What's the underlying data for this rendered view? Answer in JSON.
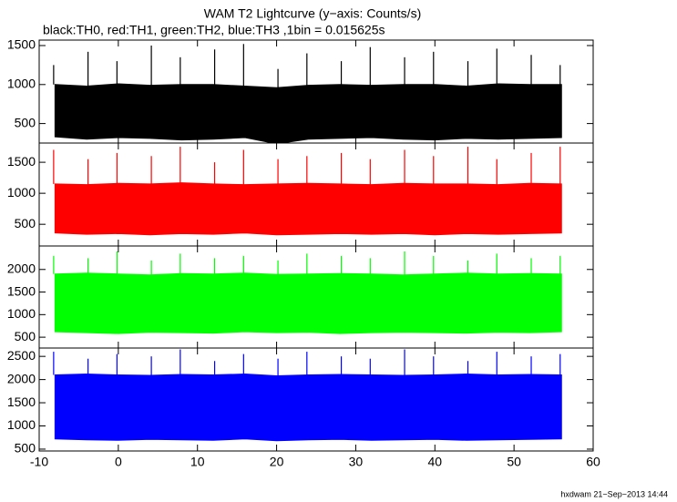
{
  "title": "WAM T2 Lightcurve (y−axis: Counts/s)",
  "subtitle": "black:TH0, red:TH1, green:TH2, blue:TH3 ,1bin = 0.015625s",
  "footer": "hxdwam 21−Sep−2013 14:44",
  "chart_data": [
    {
      "type": "band",
      "color": "#000000",
      "xlim": [
        -10,
        60
      ],
      "ylim": [
        250,
        1570
      ],
      "yticks": [
        500,
        1000,
        1500
      ],
      "x": [
        -8,
        -4,
        0,
        4,
        8,
        12,
        16,
        20,
        24,
        28,
        32,
        36,
        40,
        44,
        48,
        52,
        56
      ],
      "lower": [
        330,
        300,
        320,
        310,
        290,
        300,
        320,
        240,
        300,
        310,
        320,
        300,
        290,
        310,
        300,
        310,
        320
      ],
      "upper": [
        1000,
        980,
        1010,
        990,
        1000,
        1000,
        980,
        960,
        990,
        1000,
        990,
        1000,
        1000,
        980,
        1010,
        1000,
        1000
      ],
      "peaks": [
        1250,
        1420,
        1300,
        1500,
        1350,
        1450,
        1520,
        1200,
        1400,
        1300,
        1480,
        1350,
        1420,
        1300,
        1460,
        1380,
        1250
      ]
    },
    {
      "type": "band",
      "color": "#ff0000",
      "xlim": [
        -10,
        60
      ],
      "ylim": [
        150,
        1810
      ],
      "yticks": [
        500,
        1000,
        1500
      ],
      "x": [
        -8,
        -4,
        0,
        4,
        8,
        12,
        16,
        20,
        24,
        28,
        32,
        36,
        40,
        44,
        48,
        52,
        56
      ],
      "lower": [
        360,
        340,
        350,
        330,
        350,
        340,
        360,
        330,
        340,
        350,
        340,
        350,
        330,
        350,
        340,
        350,
        360
      ],
      "upper": [
        1150,
        1140,
        1160,
        1150,
        1170,
        1150,
        1140,
        1150,
        1160,
        1150,
        1140,
        1160,
        1150,
        1150,
        1140,
        1160,
        1150
      ],
      "peaks": [
        1700,
        1550,
        1650,
        1600,
        1750,
        1500,
        1700,
        1550,
        1600,
        1650,
        1550,
        1700,
        1600,
        1750,
        1550,
        1650,
        1750
      ]
    },
    {
      "type": "band",
      "color": "#00ff00",
      "xlim": [
        -10,
        60
      ],
      "ylim": [
        260,
        2520
      ],
      "yticks": [
        500,
        1000,
        1500,
        2000
      ],
      "x": [
        -8,
        -4,
        0,
        4,
        8,
        12,
        16,
        20,
        24,
        28,
        32,
        36,
        40,
        44,
        48,
        52,
        56
      ],
      "lower": [
        620,
        600,
        580,
        610,
        600,
        590,
        620,
        600,
        610,
        580,
        600,
        610,
        600,
        590,
        610,
        600,
        620
      ],
      "upper": [
        1900,
        1920,
        1900,
        1880,
        1910,
        1900,
        1920,
        1890,
        1900,
        1910,
        1900,
        1880,
        1900,
        1920,
        1900,
        1910,
        1900
      ],
      "peaks": [
        2300,
        2250,
        2400,
        2200,
        2350,
        2250,
        2300,
        2200,
        2350,
        2300,
        2250,
        2400,
        2300,
        2200,
        2350,
        2250,
        2300
      ]
    },
    {
      "type": "band",
      "color": "#0000ff",
      "xlim": [
        -10,
        60
      ],
      "ylim": [
        460,
        2680
      ],
      "yticks": [
        500,
        1000,
        1500,
        2000,
        2500
      ],
      "x": [
        -8,
        -4,
        0,
        4,
        8,
        12,
        16,
        20,
        24,
        28,
        32,
        36,
        40,
        44,
        48,
        52,
        56
      ],
      "lower": [
        720,
        700,
        690,
        710,
        700,
        690,
        720,
        680,
        700,
        710,
        690,
        700,
        710,
        690,
        700,
        710,
        720
      ],
      "upper": [
        2100,
        2120,
        2100,
        2090,
        2110,
        2100,
        2120,
        2080,
        2100,
        2110,
        2100,
        2090,
        2100,
        2120,
        2100,
        2110,
        2100
      ],
      "peaks": [
        2600,
        2450,
        2550,
        2500,
        2650,
        2400,
        2550,
        2450,
        2600,
        2500,
        2450,
        2650,
        2500,
        2400,
        2600,
        2500,
        2550
      ],
      "xticks": [
        -10,
        0,
        10,
        20,
        30,
        40,
        50,
        60
      ]
    }
  ]
}
